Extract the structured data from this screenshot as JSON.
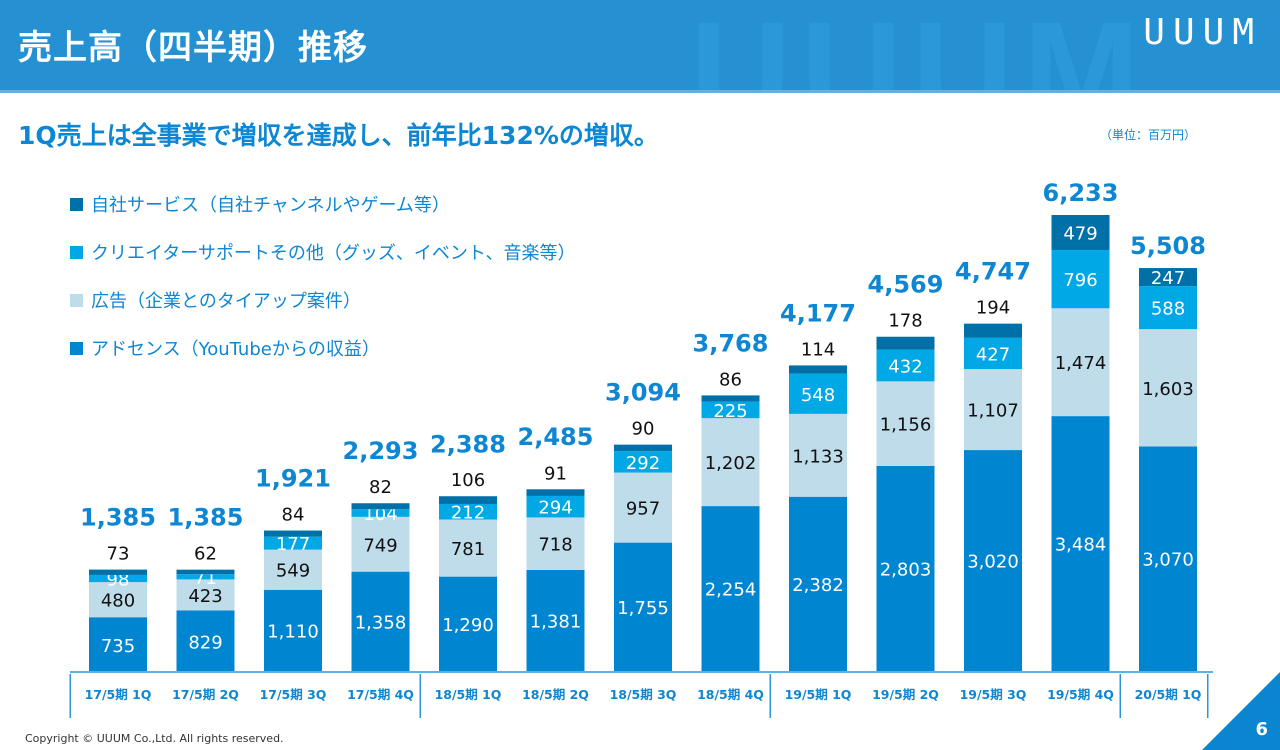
{
  "header": {
    "title": "売上高（四半期）推移",
    "logo": "UUUM",
    "watermark": "UUUM"
  },
  "subtitle": "1Q売上は全事業で増収を達成し、前年比132%の増収。",
  "unit_label": "（単位：百万円）",
  "footer": {
    "copyright": "Copyright © UUUM Co.,Ltd. All rights reserved.",
    "page_number": "6"
  },
  "colors": {
    "adsense": "#0086d1",
    "ads": "#bfdcea",
    "creator_support": "#00a8e6",
    "own_services": "#0070a8",
    "accent": "#0d86d3"
  },
  "chart_data": {
    "type": "bar",
    "stacked": true,
    "title": "売上高（四半期）推移",
    "xlabel": "",
    "ylabel": "",
    "ylim": [
      0,
      6233
    ],
    "grid": false,
    "legend_position": "top-left",
    "categories": [
      "17/5期 1Q",
      "17/5期 2Q",
      "17/5期 3Q",
      "17/5期 4Q",
      "18/5期 1Q",
      "18/5期 2Q",
      "18/5期 3Q",
      "18/5期 4Q",
      "19/5期 1Q",
      "19/5期 2Q",
      "19/5期 3Q",
      "19/5期 4Q",
      "20/5期 1Q"
    ],
    "fiscal_groups": [
      {
        "label": "17/5期",
        "count": 4
      },
      {
        "label": "18/5期",
        "count": 4
      },
      {
        "label": "19/5期",
        "count": 4
      },
      {
        "label": "20/5期",
        "count": 1
      }
    ],
    "series": [
      {
        "name": "アドセンス（YouTubeからの収益）",
        "key": "adsense",
        "values": [
          735,
          829,
          1110,
          1358,
          1290,
          1381,
          1755,
          2254,
          2382,
          2803,
          3020,
          3484,
          3070
        ]
      },
      {
        "name": "広告（企業とのタイアップ案件）",
        "key": "ads",
        "values": [
          480,
          423,
          549,
          749,
          781,
          718,
          957,
          1202,
          1133,
          1156,
          1107,
          1474,
          1603
        ]
      },
      {
        "name": "クリエイターサポートその他（グッズ、イベント、音楽等）",
        "key": "creator_support",
        "values": [
          98,
          71,
          177,
          104,
          212,
          294,
          292,
          225,
          548,
          432,
          427,
          796,
          588
        ]
      },
      {
        "name": "自社サービス（自社チャンネルやゲーム等）",
        "key": "own_services",
        "values": [
          73,
          62,
          84,
          82,
          106,
          91,
          90,
          86,
          114,
          178,
          194,
          479,
          247
        ]
      }
    ],
    "totals": [
      1385,
      1385,
      1921,
      2293,
      2388,
      2485,
      3094,
      3768,
      4177,
      4569,
      4747,
      6233,
      5508
    ],
    "total_labels": [
      "1,385",
      "1,385",
      "1,921",
      "2,293",
      "2,388",
      "2,485",
      "3,094",
      "3,768",
      "4,177",
      "4,569",
      "4,747",
      "6,233",
      "5,508"
    ],
    "legend_order": [
      "own_services",
      "creator_support",
      "ads",
      "adsense"
    ]
  }
}
